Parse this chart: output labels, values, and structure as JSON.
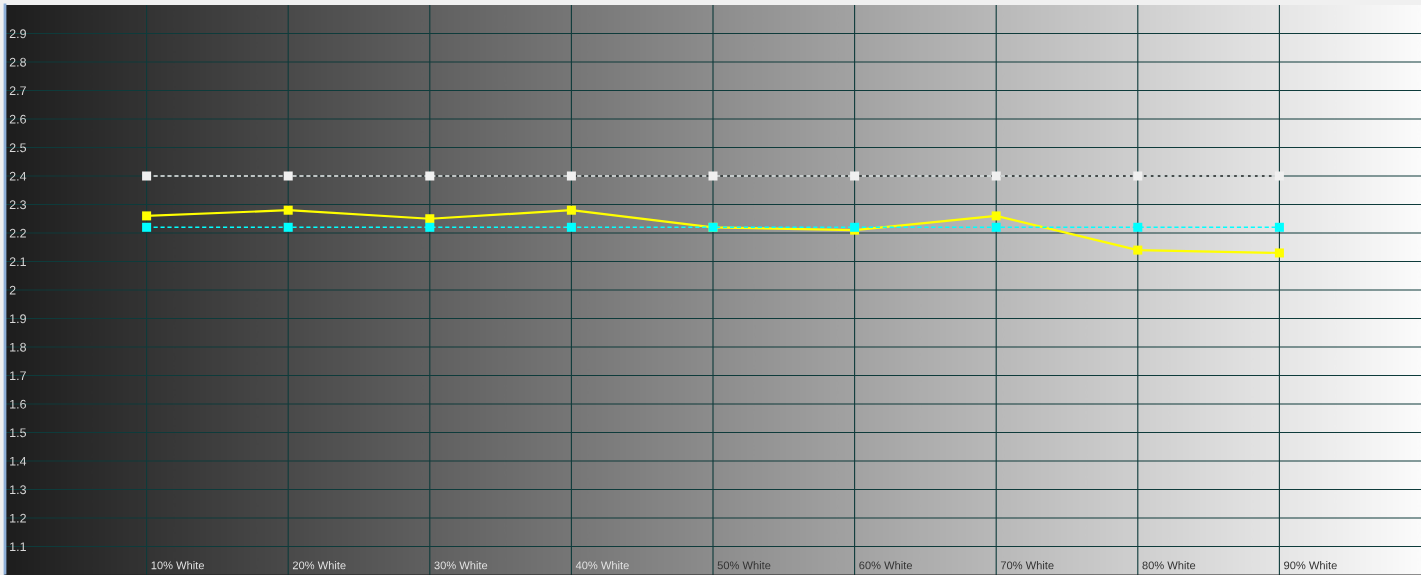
{
  "chart_data": {
    "type": "line",
    "categories": [
      "10% White",
      "20% White",
      "30% White",
      "40% White",
      "50% White",
      "60% White",
      "70% White",
      "80% White",
      "90% White"
    ],
    "series": [
      {
        "color": "#f0f0f0",
        "line_style": "dashed",
        "values": [
          2.4,
          2.4,
          2.4,
          2.4,
          2.4,
          2.4,
          2.4,
          2.4,
          2.4
        ]
      },
      {
        "color": "#ffff00",
        "line_style": "solid",
        "values": [
          2.26,
          2.28,
          2.25,
          2.28,
          2.22,
          2.21,
          2.26,
          2.14,
          2.13
        ]
      },
      {
        "color": "#00ffff",
        "line_style": "dashed",
        "values": [
          2.22,
          2.22,
          2.22,
          2.22,
          2.22,
          2.22,
          2.22,
          2.22,
          2.22
        ]
      }
    ],
    "ylim": [
      1,
      3
    ],
    "yticks": [
      1.1,
      1.2,
      1.3,
      1.4,
      1.5,
      1.6,
      1.7,
      1.8,
      1.9,
      2,
      2.1,
      2.2,
      2.3,
      2.4,
      2.5,
      2.6,
      2.7,
      2.8,
      2.9
    ],
    "grid": true,
    "marker": "square"
  }
}
